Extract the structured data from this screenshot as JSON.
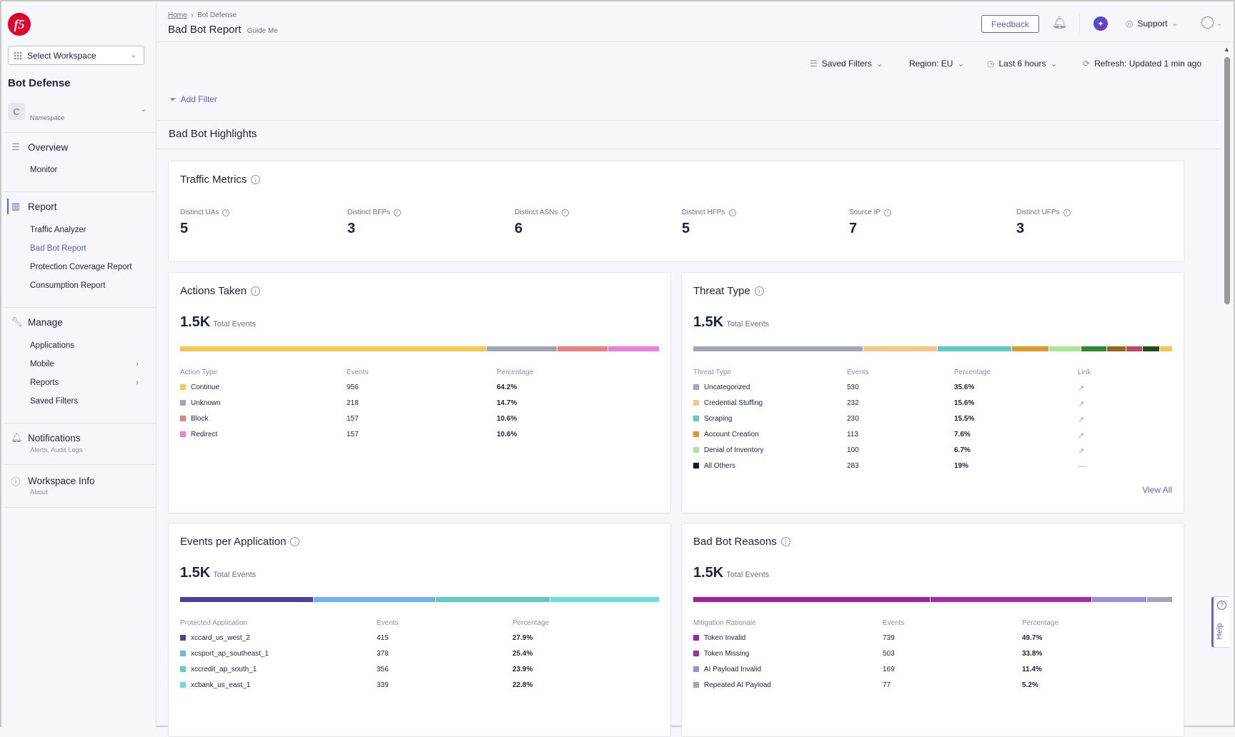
{
  "sidebar": {
    "logo": "f5",
    "workspace": "Select Workspace",
    "title": "Bot Defense",
    "namespace_initial": "C",
    "namespace_label": "Namespace",
    "overview": "Overview",
    "monitor": "Monitor",
    "report": "Report",
    "report_items": [
      "Traffic Analyzer",
      "Bad Bot Report",
      "Protection Coverage Report",
      "Consumption Report"
    ],
    "manage": "Manage",
    "manage_items": [
      "Applications",
      "Mobile",
      "Reports",
      "Saved Filters"
    ],
    "notifications": "Notifications",
    "notifications_sub": "Alerts, Audit Logs",
    "workspace_info": "Workspace Info",
    "workspace_info_sub": "About"
  },
  "header": {
    "breadcrumb_home": "Home",
    "breadcrumb_current": "Bot Defense",
    "title": "Bad Bot Report",
    "guide": "Guide Me",
    "feedback": "Feedback",
    "support": "Support"
  },
  "filters": {
    "saved": "Saved Filters",
    "region": "Region: EU",
    "time": "Last 6 hours",
    "refresh": "Refresh: Updated 1 min ago",
    "add": "Add Filter"
  },
  "section_title": "Bad Bot Highlights",
  "traffic": {
    "title": "Traffic Metrics",
    "metrics": [
      {
        "label": "Distinct UAs",
        "value": "5"
      },
      {
        "label": "Distinct BFPs",
        "value": "3"
      },
      {
        "label": "Distinct ASNs",
        "value": "6"
      },
      {
        "label": "Distinct HFPs",
        "value": "5"
      },
      {
        "label": "Source IP",
        "value": "7"
      },
      {
        "label": "Distinct UFPs",
        "value": "3"
      }
    ]
  },
  "actions": {
    "title": "Actions Taken",
    "total": "1.5K",
    "total_label": "Total Events",
    "headers": [
      "Action Type",
      "Events",
      "Percentage"
    ],
    "rows": [
      {
        "name": "Continue",
        "events": "956",
        "pct": "64.2%",
        "color": "#f9c74f"
      },
      {
        "name": "Unknown",
        "events": "218",
        "pct": "14.7%",
        "color": "#a0a6b8"
      },
      {
        "name": "Block",
        "events": "157",
        "pct": "10.6%",
        "color": "#ef7f7f"
      },
      {
        "name": "Redirect",
        "events": "157",
        "pct": "10.6%",
        "color": "#ee7fe0"
      }
    ],
    "bar": [
      {
        "value": 64.2,
        "color": "#f9c74f"
      },
      {
        "value": 14.7,
        "color": "#a0a6b8"
      },
      {
        "value": 10.6,
        "color": "#ef7f7f"
      },
      {
        "value": 10.6,
        "color": "#ee7fe0"
      }
    ]
  },
  "threat": {
    "title": "Threat Type",
    "total": "1.5K",
    "total_label": "Total Events",
    "headers": [
      "Threat Type",
      "Events",
      "Percentage",
      "Link"
    ],
    "view_all": "View All",
    "rows": [
      {
        "name": "Uncategorized",
        "events": "530",
        "pct": "35.6%",
        "color": "#a0a6b8",
        "link": "external-link-icon"
      },
      {
        "name": "Credential Stuffing",
        "events": "232",
        "pct": "15.6%",
        "color": "#f9c583",
        "link": "external-link-icon"
      },
      {
        "name": "Scraping",
        "events": "230",
        "pct": "15.5%",
        "color": "#5ccdc4",
        "link": "external-link-icon"
      },
      {
        "name": "Account Creation",
        "events": "113",
        "pct": "7.6%",
        "color": "#e09b22",
        "link": "external-link-icon"
      },
      {
        "name": "Denial of Inventory",
        "events": "100",
        "pct": "6.7%",
        "color": "#a8e89a",
        "link": "external-link-icon"
      },
      {
        "name": "All Others",
        "events": "283",
        "pct": "19%",
        "color": "#141a3c",
        "link": "—"
      }
    ],
    "bar": [
      {
        "value": 35.6,
        "color": "#a0a6b8"
      },
      {
        "value": 15.6,
        "color": "#f9c583"
      },
      {
        "value": 15.5,
        "color": "#5ccdc4"
      },
      {
        "value": 7.6,
        "color": "#e09b22"
      },
      {
        "value": 6.7,
        "color": "#a8e89a"
      },
      {
        "value": 5.2,
        "color": "#2e8b2e"
      },
      {
        "value": 3.9,
        "color": "#94691a"
      },
      {
        "value": 3.4,
        "color": "#c0485a"
      },
      {
        "value": 3.5,
        "color": "#1d4f17"
      },
      {
        "value": 2.5,
        "color": "#f9c74f"
      }
    ]
  },
  "apps": {
    "title": "Events per Application",
    "total": "1.5K",
    "total_label": "Total Events",
    "headers": [
      "Protected Application",
      "Events",
      "Percentage"
    ],
    "rows": [
      {
        "name": "xccard_us_west_2",
        "events": "415",
        "pct": "27.9%",
        "color": "#4b3fa3"
      },
      {
        "name": "xcsport_ap_southeast_1",
        "events": "378",
        "pct": "25.4%",
        "color": "#6bb5f2"
      },
      {
        "name": "xccredit_ap_south_1",
        "events": "356",
        "pct": "23.9%",
        "color": "#5ccdc4"
      },
      {
        "name": "xcbank_us_east_1",
        "events": "339",
        "pct": "22.8%",
        "color": "#6ae0e4"
      }
    ],
    "bar": [
      {
        "value": 27.9,
        "color": "#4b3fa3"
      },
      {
        "value": 25.4,
        "color": "#6bb5f2"
      },
      {
        "value": 23.9,
        "color": "#5ccdc4"
      },
      {
        "value": 22.8,
        "color": "#6ae0e4"
      }
    ]
  },
  "reasons": {
    "title": "Bad Bot Reasons",
    "total": "1.5K",
    "total_label": "Total Events",
    "headers": [
      "Mitigation Rationale",
      "Events",
      "Percentage"
    ],
    "rows": [
      {
        "name": "Token Invalid",
        "events": "739",
        "pct": "49.7%",
        "color": "#a0229f"
      },
      {
        "name": "Token Missing",
        "events": "503",
        "pct": "33.8%",
        "color": "#a82aa8"
      },
      {
        "name": "AI Payload Invalid",
        "events": "169",
        "pct": "11.4%",
        "color": "#9b8de0"
      },
      {
        "name": "Repeated AI Payload",
        "events": "77",
        "pct": "5.2%",
        "color": "#a0a6b8"
      }
    ],
    "bar": [
      {
        "value": 49.7,
        "color": "#a0229f"
      },
      {
        "value": 33.8,
        "color": "#a82aa8"
      },
      {
        "value": 11.4,
        "color": "#9b8de0"
      },
      {
        "value": 5.2,
        "color": "#a0a6b8"
      }
    ]
  },
  "help": "Help"
}
